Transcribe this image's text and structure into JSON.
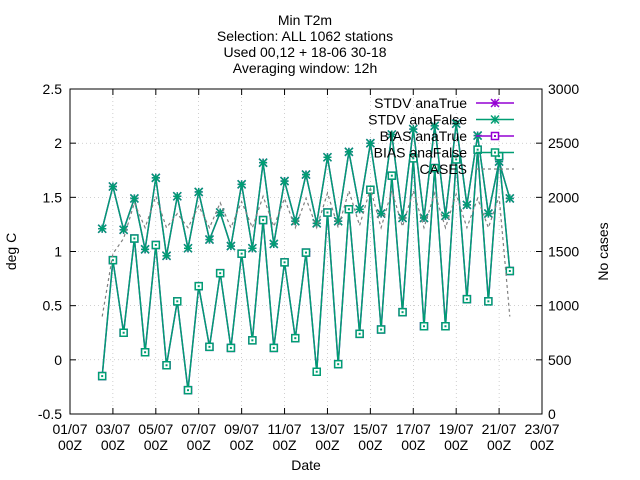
{
  "chart_data": {
    "type": "line",
    "title": [
      "Min T2m",
      "Selection: ALL    1062 stations",
      "Used 00,12 + 18-06 30-18",
      "Averaging window: 12h"
    ],
    "xlabel": "Date",
    "ylabel": "deg C",
    "y2label": "No cases",
    "x_ticks": [
      {
        "day": 1,
        "l1": "01/07",
        "l2": "00Z"
      },
      {
        "day": 3,
        "l1": "03/07",
        "l2": "00Z"
      },
      {
        "day": 5,
        "l1": "05/07",
        "l2": "00Z"
      },
      {
        "day": 7,
        "l1": "07/07",
        "l2": "00Z"
      },
      {
        "day": 9,
        "l1": "09/07",
        "l2": "00Z"
      },
      {
        "day": 11,
        "l1": "11/07",
        "l2": "00Z"
      },
      {
        "day": 13,
        "l1": "13/07",
        "l2": "00Z"
      },
      {
        "day": 15,
        "l1": "15/07",
        "l2": "00Z"
      },
      {
        "day": 17,
        "l1": "17/07",
        "l2": "00Z"
      },
      {
        "day": 19,
        "l1": "19/07",
        "l2": "00Z"
      },
      {
        "day": 21,
        "l1": "21/07",
        "l2": "00Z"
      },
      {
        "day": 23,
        "l1": "23/07",
        "l2": "00Z"
      }
    ],
    "xlim": [
      1,
      23
    ],
    "ylim": [
      -0.5,
      2.5
    ],
    "y_ticks": [
      "-0.5",
      "0",
      "0.5",
      "1",
      "1.5",
      "2",
      "2.5"
    ],
    "y2lim": [
      0,
      3000
    ],
    "y2_ticks": [
      "0",
      "500",
      "1000",
      "1500",
      "2000",
      "2500",
      "3000"
    ],
    "legend": {
      "position": "top-right"
    },
    "x": [
      2.5,
      3.0,
      3.5,
      4.0,
      4.5,
      5.0,
      5.5,
      6.0,
      6.5,
      7.0,
      7.5,
      8.0,
      8.5,
      9.0,
      9.5,
      10.0,
      10.5,
      11.0,
      11.5,
      12.0,
      12.5,
      13.0,
      13.5,
      14.0,
      14.5,
      15.0,
      15.5,
      16.0,
      16.5,
      17.0,
      17.5,
      18.0,
      18.5,
      19.0,
      19.5,
      20.0,
      20.5,
      21.0,
      21.5,
      22.0
    ],
    "series": [
      {
        "name": "STDV anaTrue",
        "axis": "y1",
        "color": "#9400d3",
        "marker": "star",
        "values": [
          1.21,
          1.6,
          1.2,
          1.49,
          1.02,
          1.68,
          0.96,
          1.51,
          1.03,
          1.55,
          1.11,
          1.36,
          1.05,
          1.62,
          1.03,
          1.82,
          1.07,
          1.65,
          1.28,
          1.71,
          1.26,
          1.87,
          1.28,
          1.92,
          1.39,
          2.0,
          1.35,
          2.08,
          1.31,
          2.13,
          1.31,
          2.16,
          1.33,
          2.18,
          1.43,
          2.07,
          1.35,
          1.83,
          1.49,
          null
        ]
      },
      {
        "name": "STDV anaFalse",
        "axis": "y1",
        "color": "#009e73",
        "marker": "star",
        "values": [
          1.21,
          1.6,
          1.2,
          1.49,
          1.02,
          1.68,
          0.96,
          1.51,
          1.03,
          1.55,
          1.11,
          1.36,
          1.05,
          1.62,
          1.03,
          1.82,
          1.07,
          1.65,
          1.28,
          1.71,
          1.26,
          1.87,
          1.28,
          1.92,
          1.39,
          2.0,
          1.35,
          2.08,
          1.31,
          2.13,
          1.31,
          2.16,
          1.33,
          2.18,
          1.43,
          2.07,
          1.35,
          1.83,
          1.49,
          null
        ]
      },
      {
        "name": "BIAS anaTrue",
        "axis": "y1",
        "color": "#9400d3",
        "marker": "square",
        "values": [
          -0.15,
          0.92,
          0.25,
          1.12,
          0.07,
          1.06,
          -0.05,
          0.54,
          -0.28,
          0.68,
          0.12,
          0.8,
          0.11,
          0.98,
          0.18,
          1.29,
          0.11,
          0.9,
          0.2,
          0.99,
          -0.11,
          1.36,
          -0.04,
          1.39,
          0.24,
          1.57,
          0.28,
          1.7,
          0.44,
          1.86,
          0.31,
          1.77,
          0.31,
          1.85,
          0.56,
          1.94,
          0.54,
          1.88,
          0.82,
          null
        ]
      },
      {
        "name": "BIAS anaFalse",
        "axis": "y1",
        "color": "#009e73",
        "marker": "square",
        "values": [
          -0.15,
          0.92,
          0.25,
          1.12,
          0.07,
          1.06,
          -0.05,
          0.54,
          -0.28,
          0.68,
          0.12,
          0.8,
          0.11,
          0.98,
          0.18,
          1.29,
          0.11,
          0.9,
          0.2,
          0.99,
          -0.11,
          1.36,
          -0.04,
          1.39,
          0.24,
          1.57,
          0.28,
          1.7,
          0.44,
          1.86,
          0.31,
          1.77,
          0.31,
          1.85,
          0.56,
          1.94,
          0.54,
          1.88,
          0.82,
          null
        ]
      },
      {
        "name": "CASES",
        "axis": "y2",
        "color": "#808080",
        "marker": "none",
        "values": [
          900,
          1480,
          1620,
          1950,
          1720,
          2010,
          1720,
          1850,
          1720,
          1920,
          1720,
          1950,
          1720,
          1960,
          1720,
          2010,
          1730,
          1990,
          1720,
          1990,
          1720,
          2040,
          1720,
          2060,
          1740,
          2080,
          1720,
          2060,
          1730,
          2060,
          1720,
          2040,
          1720,
          2030,
          1720,
          1990,
          1720,
          2010,
          900,
          null
        ]
      }
    ]
  }
}
